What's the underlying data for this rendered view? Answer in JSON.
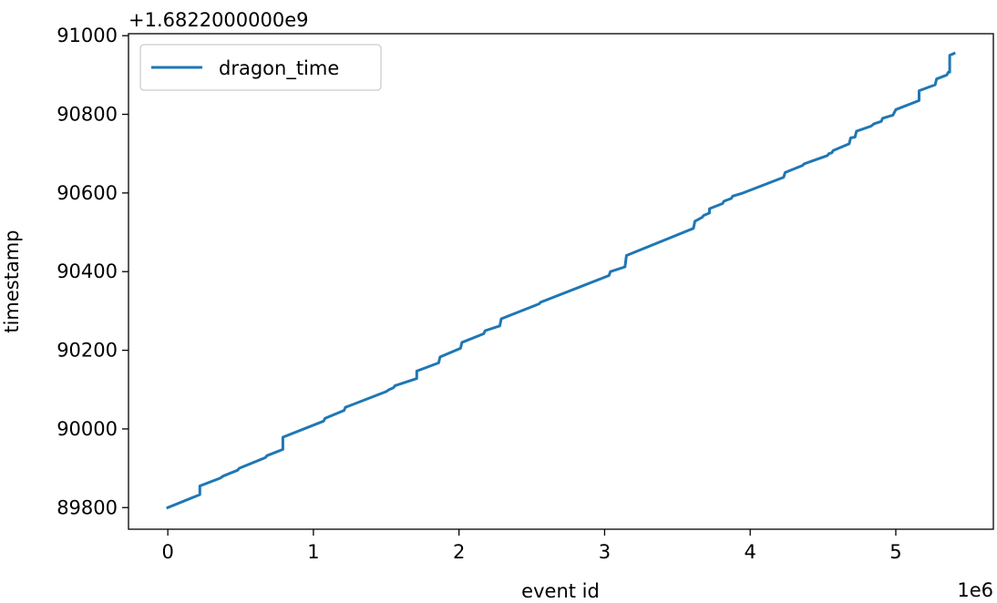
{
  "chart_data": {
    "type": "line",
    "xlabel": "event id",
    "ylabel": "timestamp",
    "x_offset_label": "1e6",
    "y_offset_label": "+1.6822000000e9",
    "xlim": [
      -0.27,
      5.67
    ],
    "ylim": [
      89745,
      91005
    ],
    "x_ticks": [
      0,
      1,
      2,
      3,
      4,
      5
    ],
    "x_tick_labels": [
      "0",
      "1",
      "2",
      "3",
      "4",
      "5"
    ],
    "y_ticks": [
      89800,
      90000,
      90200,
      90400,
      90600,
      90800,
      91000
    ],
    "y_tick_labels": [
      "89800",
      "90000",
      "90200",
      "90400",
      "90600",
      "90800",
      "91000"
    ],
    "grid": false,
    "legend": {
      "location": "top-left",
      "entries": [
        "dragon_time"
      ]
    },
    "series": [
      {
        "name": "dragon_time",
        "color": "#1f77b4",
        "points": [
          [
            0.0,
            89800
          ],
          [
            0.22,
            89833
          ],
          [
            0.22,
            89855
          ],
          [
            0.36,
            89875
          ],
          [
            0.38,
            89880
          ],
          [
            0.48,
            89895
          ],
          [
            0.49,
            89900
          ],
          [
            0.67,
            89927
          ],
          [
            0.68,
            89932
          ],
          [
            0.79,
            89948
          ],
          [
            0.79,
            89979
          ],
          [
            1.07,
            90020
          ],
          [
            1.08,
            90027
          ],
          [
            1.21,
            90047
          ],
          [
            1.22,
            90055
          ],
          [
            1.5,
            90095
          ],
          [
            1.52,
            90100
          ],
          [
            1.55,
            90105
          ],
          [
            1.56,
            90110
          ],
          [
            1.71,
            90128
          ],
          [
            1.71,
            90147
          ],
          [
            1.86,
            90168
          ],
          [
            1.87,
            90183
          ],
          [
            2.01,
            90205
          ],
          [
            2.02,
            90220
          ],
          [
            2.17,
            90242
          ],
          [
            2.18,
            90250
          ],
          [
            2.28,
            90262
          ],
          [
            2.29,
            90280
          ],
          [
            2.55,
            90318
          ],
          [
            2.56,
            90322
          ],
          [
            3.03,
            90390
          ],
          [
            3.04,
            90400
          ],
          [
            3.14,
            90412
          ],
          [
            3.15,
            90441
          ],
          [
            3.61,
            90510
          ],
          [
            3.62,
            90528
          ],
          [
            3.67,
            90538
          ],
          [
            3.68,
            90543
          ],
          [
            3.72,
            90549
          ],
          [
            3.72,
            90560
          ],
          [
            3.81,
            90573
          ],
          [
            3.82,
            90579
          ],
          [
            3.87,
            90586
          ],
          [
            3.88,
            90592
          ],
          [
            3.95,
            90600
          ],
          [
            4.23,
            90640
          ],
          [
            4.24,
            90652
          ],
          [
            4.36,
            90670
          ],
          [
            4.37,
            90674
          ],
          [
            4.53,
            90695
          ],
          [
            4.54,
            90700
          ],
          [
            4.56,
            90702
          ],
          [
            4.57,
            90708
          ],
          [
            4.68,
            90725
          ],
          [
            4.69,
            90740
          ],
          [
            4.72,
            90742
          ],
          [
            4.73,
            90757
          ],
          [
            4.83,
            90770
          ],
          [
            4.85,
            90776
          ],
          [
            4.9,
            90782
          ],
          [
            4.91,
            90790
          ],
          [
            4.98,
            90798
          ],
          [
            5.0,
            90812
          ],
          [
            5.16,
            90835
          ],
          [
            5.16,
            90860
          ],
          [
            5.27,
            90875
          ],
          [
            5.28,
            90890
          ],
          [
            5.35,
            90900
          ],
          [
            5.36,
            90907
          ],
          [
            5.37,
            90907
          ],
          [
            5.37,
            90950
          ],
          [
            5.4,
            90955
          ]
        ]
      }
    ]
  }
}
